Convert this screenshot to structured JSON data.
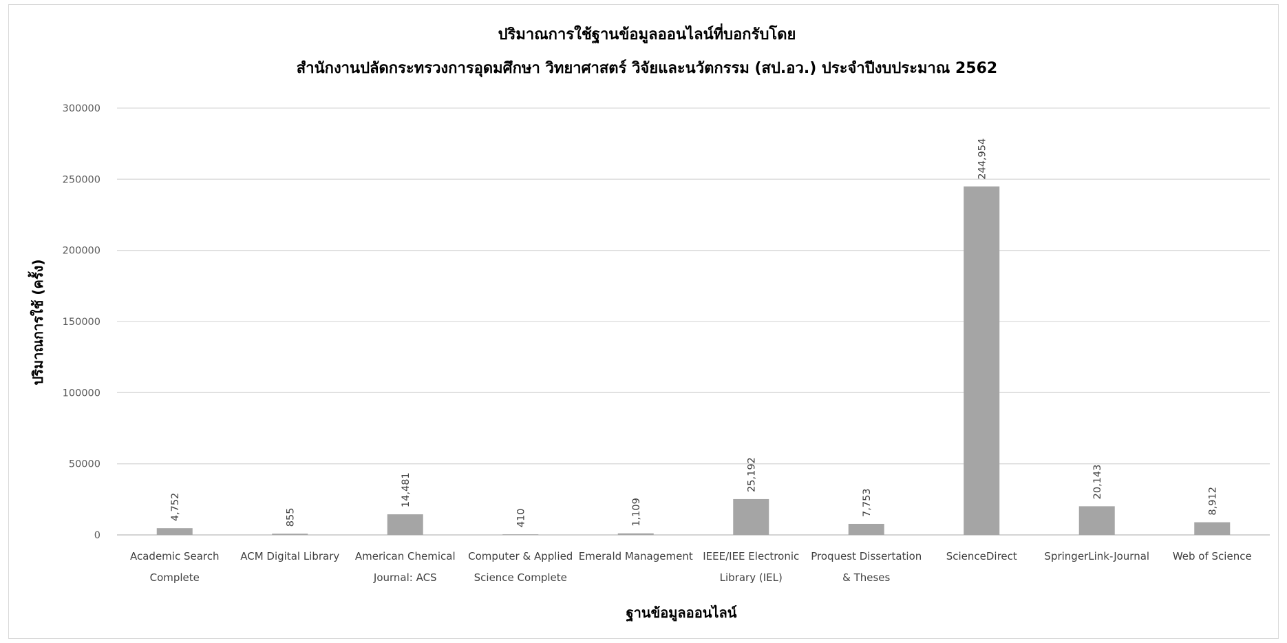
{
  "chart_data": {
    "type": "bar",
    "title": [
      "ปริมาณการใช้ฐานข้อมูลออนไลน์ที่บอกรับโดย",
      "สำนักงานปลัดกระทรวงการอุดมศึกษา วิทยาศาสตร์ วิจัยและนวัตกรรม (สป.อว.) ประจำปีงบประมาณ 2562"
    ],
    "xlabel": "ฐานข้อมูลออนไลน์",
    "ylabel": "ปริมาณการใช้ (ครั้ง)",
    "ylim": [
      0,
      300000
    ],
    "yticks": [
      "0",
      "50000",
      "100000",
      "150000",
      "200000",
      "250000",
      "300000"
    ],
    "grid": true,
    "legend": "none",
    "bar_color": "#a5a5a5",
    "categories": [
      [
        "Academic Search",
        "Complete"
      ],
      [
        "ACM Digital Library"
      ],
      [
        "American Chemical",
        "Journal: ACS"
      ],
      [
        "Computer & Applied",
        "Science Complete"
      ],
      [
        "Emerald Management"
      ],
      [
        "IEEE/IEE Electronic",
        "Library (IEL)"
      ],
      [
        "Proquest Dissertation",
        "& Theses"
      ],
      [
        "ScienceDirect"
      ],
      [
        "SpringerLink-Journal"
      ],
      [
        "Web of Science"
      ]
    ],
    "values": [
      4752,
      855,
      14481,
      410,
      1109,
      25192,
      7753,
      244954,
      20143,
      8912
    ],
    "data_labels": [
      "4,752",
      "855",
      "14,481",
      "410",
      "1,109",
      "25,192",
      "7,753",
      "244,954",
      "20,143",
      "8,912"
    ]
  }
}
